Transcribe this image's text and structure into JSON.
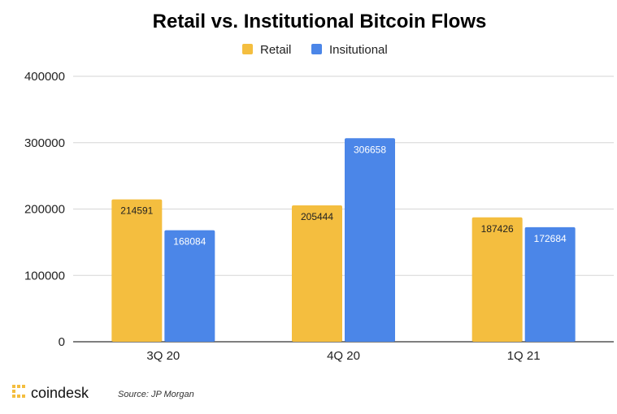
{
  "chart_data": {
    "type": "bar",
    "title": "Retail vs. Institutional Bitcoin Flows",
    "categories": [
      "3Q 20",
      "4Q 20",
      "1Q 21"
    ],
    "series": [
      {
        "name": "Retail",
        "values": [
          214591,
          205444,
          187426
        ],
        "color": "#F4BE3F"
      },
      {
        "name": "Insitutional",
        "values": [
          168084,
          306658,
          172684
        ],
        "color": "#4B86E8"
      }
    ],
    "yticks": [
      "0",
      "100000",
      "200000",
      "300000",
      "400000"
    ],
    "ylim": [
      0,
      400000
    ],
    "grid": true,
    "legend_position": "top-center"
  },
  "footer": {
    "logo_text": "coindesk",
    "source": "Source: JP Morgan",
    "logo_color": "#F4BE3F"
  }
}
